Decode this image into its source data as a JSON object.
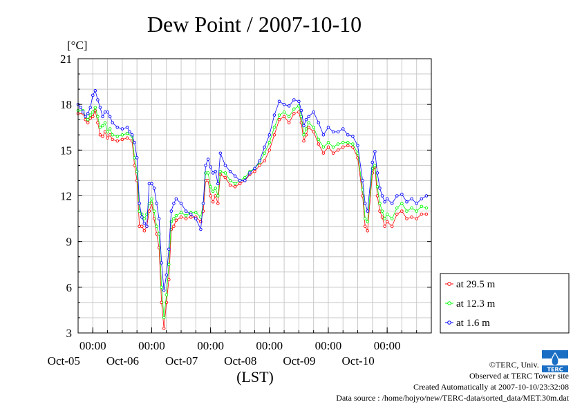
{
  "chart_data": {
    "type": "line",
    "title": "Dew Point / 2007-10-10",
    "ylabel": "[°C]",
    "xlabel": "(LST)",
    "ylim": [
      3,
      21
    ],
    "yticks": [
      3,
      6,
      9,
      12,
      15,
      18,
      21
    ],
    "xlim": [
      0,
      144
    ],
    "x_units": "hours since 2007-10-04 18:00",
    "xticks": [
      {
        "x": 6,
        "top": "00:00",
        "bottom": "Oct-05"
      },
      {
        "x": 30,
        "top": "00:00",
        "bottom": "Oct-06"
      },
      {
        "x": 54,
        "top": "00:00",
        "bottom": "Oct-07"
      },
      {
        "x": 78,
        "top": "00:00",
        "bottom": "Oct-08"
      },
      {
        "x": 102,
        "top": "00:00",
        "bottom": "Oct-09"
      },
      {
        "x": 126,
        "top": "00:00",
        "bottom": "Oct-10"
      }
    ],
    "grid": true,
    "legend_position": "right-bottom",
    "series": [
      {
        "name": "at 29.5 m",
        "color": "#ff0000",
        "points": [
          [
            0,
            17.4
          ],
          [
            2,
            17.4
          ],
          [
            3,
            17.0
          ],
          [
            4,
            16.8
          ],
          [
            5,
            17.1
          ],
          [
            6,
            17.2
          ],
          [
            7,
            17.6
          ],
          [
            8,
            16.8
          ],
          [
            9,
            16.0
          ],
          [
            10,
            15.9
          ],
          [
            11,
            16.2
          ],
          [
            12,
            15.8
          ],
          [
            13,
            16.0
          ],
          [
            14,
            15.7
          ],
          [
            16,
            15.6
          ],
          [
            18,
            15.7
          ],
          [
            20,
            15.8
          ],
          [
            22,
            15.6
          ],
          [
            23,
            14.0
          ],
          [
            24,
            13.0
          ],
          [
            25,
            10.0
          ],
          [
            26,
            10.0
          ],
          [
            27,
            9.7
          ],
          [
            28,
            10.0
          ],
          [
            29,
            11.0
          ],
          [
            30,
            11.5
          ],
          [
            31,
            10.5
          ],
          [
            32,
            9.5
          ],
          [
            33,
            8.6
          ],
          [
            34,
            5.0
          ],
          [
            35,
            3.3
          ],
          [
            36,
            5.0
          ],
          [
            37,
            6.5
          ],
          [
            38,
            9.8
          ],
          [
            39,
            10.0
          ],
          [
            40,
            10.4
          ],
          [
            42,
            10.6
          ],
          [
            44,
            10.5
          ],
          [
            46,
            10.6
          ],
          [
            48,
            10.6
          ],
          [
            50,
            10.3
          ],
          [
            51,
            11.0
          ],
          [
            52,
            13.0
          ],
          [
            53,
            13.0
          ],
          [
            54,
            12.0
          ],
          [
            55,
            11.6
          ],
          [
            56,
            12.0
          ],
          [
            57,
            11.5
          ],
          [
            58,
            13.4
          ],
          [
            60,
            13.2
          ],
          [
            62,
            12.7
          ],
          [
            64,
            12.6
          ],
          [
            66,
            12.8
          ],
          [
            68,
            13.0
          ],
          [
            70,
            13.4
          ],
          [
            72,
            13.6
          ],
          [
            74,
            14.0
          ],
          [
            76,
            14.3
          ],
          [
            78,
            15.0
          ],
          [
            80,
            16.0
          ],
          [
            82,
            17.0
          ],
          [
            84,
            17.2
          ],
          [
            86,
            16.8
          ],
          [
            88,
            17.4
          ],
          [
            90,
            17.5
          ],
          [
            91,
            16.8
          ],
          [
            92,
            15.6
          ],
          [
            93,
            16.0
          ],
          [
            94,
            16.5
          ],
          [
            96,
            16.2
          ],
          [
            98,
            15.4
          ],
          [
            100,
            14.8
          ],
          [
            102,
            15.2
          ],
          [
            104,
            14.8
          ],
          [
            106,
            15.0
          ],
          [
            108,
            15.2
          ],
          [
            110,
            15.3
          ],
          [
            112,
            15.2
          ],
          [
            114,
            14.5
          ],
          [
            116,
            12.0
          ],
          [
            117,
            10.0
          ],
          [
            118,
            9.7
          ],
          [
            120,
            13.5
          ],
          [
            121,
            13.9
          ],
          [
            122,
            12.0
          ],
          [
            123,
            11.0
          ],
          [
            124,
            10.6
          ],
          [
            125,
            10.0
          ],
          [
            126,
            10.3
          ],
          [
            128,
            10.0
          ],
          [
            130,
            10.8
          ],
          [
            132,
            11.0
          ],
          [
            134,
            10.5
          ],
          [
            136,
            10.6
          ],
          [
            138,
            10.5
          ],
          [
            140,
            10.8
          ],
          [
            142,
            10.8
          ]
        ]
      },
      {
        "name": "at 12.3 m",
        "color": "#00ff00",
        "points": [
          [
            0,
            17.6
          ],
          [
            2,
            17.6
          ],
          [
            3,
            17.2
          ],
          [
            4,
            17.0
          ],
          [
            5,
            17.3
          ],
          [
            6,
            17.5
          ],
          [
            7,
            17.8
          ],
          [
            8,
            17.2
          ],
          [
            9,
            16.5
          ],
          [
            10,
            16.6
          ],
          [
            11,
            16.8
          ],
          [
            12,
            16.2
          ],
          [
            13,
            16.4
          ],
          [
            14,
            16.0
          ],
          [
            16,
            15.9
          ],
          [
            18,
            16.0
          ],
          [
            20,
            16.1
          ],
          [
            22,
            15.9
          ],
          [
            23,
            14.5
          ],
          [
            24,
            13.6
          ],
          [
            25,
            11.0
          ],
          [
            26,
            10.8
          ],
          [
            27,
            10.5
          ],
          [
            28,
            10.8
          ],
          [
            29,
            11.5
          ],
          [
            30,
            11.8
          ],
          [
            31,
            11.0
          ],
          [
            32,
            10.0
          ],
          [
            33,
            9.5
          ],
          [
            34,
            6.0
          ],
          [
            35,
            4.0
          ],
          [
            36,
            5.5
          ],
          [
            37,
            7.5
          ],
          [
            38,
            10.3
          ],
          [
            39,
            10.5
          ],
          [
            40,
            10.7
          ],
          [
            42,
            10.9
          ],
          [
            44,
            10.7
          ],
          [
            46,
            10.9
          ],
          [
            48,
            10.9
          ],
          [
            50,
            10.6
          ],
          [
            51,
            11.5
          ],
          [
            52,
            13.5
          ],
          [
            53,
            13.5
          ],
          [
            54,
            12.6
          ],
          [
            55,
            12.3
          ],
          [
            56,
            12.5
          ],
          [
            57,
            12.0
          ],
          [
            58,
            13.6
          ],
          [
            60,
            13.5
          ],
          [
            62,
            13.0
          ],
          [
            64,
            12.8
          ],
          [
            66,
            13.0
          ],
          [
            68,
            13.2
          ],
          [
            70,
            13.6
          ],
          [
            72,
            13.8
          ],
          [
            74,
            14.2
          ],
          [
            76,
            14.8
          ],
          [
            78,
            15.5
          ],
          [
            80,
            16.5
          ],
          [
            82,
            17.3
          ],
          [
            84,
            17.5
          ],
          [
            86,
            17.2
          ],
          [
            88,
            17.7
          ],
          [
            90,
            17.9
          ],
          [
            91,
            17.2
          ],
          [
            92,
            16.0
          ],
          [
            93,
            16.4
          ],
          [
            94,
            16.8
          ],
          [
            96,
            16.5
          ],
          [
            98,
            15.7
          ],
          [
            100,
            15.2
          ],
          [
            102,
            15.5
          ],
          [
            104,
            15.2
          ],
          [
            106,
            15.4
          ],
          [
            108,
            15.5
          ],
          [
            110,
            15.5
          ],
          [
            112,
            15.4
          ],
          [
            114,
            14.8
          ],
          [
            116,
            12.4
          ],
          [
            117,
            10.5
          ],
          [
            118,
            10.3
          ],
          [
            120,
            13.8
          ],
          [
            121,
            14.0
          ],
          [
            122,
            12.6
          ],
          [
            123,
            11.5
          ],
          [
            124,
            11.0
          ],
          [
            125,
            10.5
          ],
          [
            126,
            10.8
          ],
          [
            128,
            10.5
          ],
          [
            130,
            11.2
          ],
          [
            132,
            11.5
          ],
          [
            134,
            11.0
          ],
          [
            136,
            11.2
          ],
          [
            138,
            11.0
          ],
          [
            140,
            11.3
          ],
          [
            142,
            11.2
          ]
        ]
      },
      {
        "name": "at 1.6 m",
        "color": "#0000ff",
        "points": [
          [
            0,
            18.0
          ],
          [
            1,
            17.8
          ],
          [
            2,
            17.5
          ],
          [
            3,
            17.2
          ],
          [
            4,
            17.4
          ],
          [
            5,
            17.8
          ],
          [
            6,
            18.6
          ],
          [
            7,
            18.9
          ],
          [
            8,
            18.3
          ],
          [
            9,
            17.8
          ],
          [
            10,
            17.2
          ],
          [
            11,
            17.5
          ],
          [
            12,
            17.5
          ],
          [
            13,
            17.2
          ],
          [
            14,
            16.8
          ],
          [
            16,
            16.5
          ],
          [
            18,
            16.4
          ],
          [
            20,
            16.5
          ],
          [
            21,
            16.2
          ],
          [
            22,
            16.0
          ],
          [
            23,
            15.5
          ],
          [
            24,
            14.5
          ],
          [
            25,
            11.5
          ],
          [
            26,
            10.6
          ],
          [
            27,
            10.2
          ],
          [
            28,
            10.0
          ],
          [
            29,
            12.8
          ],
          [
            30,
            12.8
          ],
          [
            31,
            12.5
          ],
          [
            32,
            11.5
          ],
          [
            33,
            10.5
          ],
          [
            34,
            7.6
          ],
          [
            35,
            5.8
          ],
          [
            36,
            6.8
          ],
          [
            37,
            8.5
          ],
          [
            38,
            11.0
          ],
          [
            39,
            11.5
          ],
          [
            40,
            11.8
          ],
          [
            42,
            11.5
          ],
          [
            44,
            11.0
          ],
          [
            46,
            10.8
          ],
          [
            48,
            10.5
          ],
          [
            50,
            9.8
          ],
          [
            51,
            11.5
          ],
          [
            52,
            14.0
          ],
          [
            53,
            14.4
          ],
          [
            54,
            13.9
          ],
          [
            55,
            13.5
          ],
          [
            56,
            13.6
          ],
          [
            57,
            12.8
          ],
          [
            58,
            14.8
          ],
          [
            60,
            14.0
          ],
          [
            62,
            13.6
          ],
          [
            64,
            13.3
          ],
          [
            66,
            13.0
          ],
          [
            68,
            13.0
          ],
          [
            70,
            13.5
          ],
          [
            72,
            13.8
          ],
          [
            74,
            14.3
          ],
          [
            76,
            15.2
          ],
          [
            78,
            16.0
          ],
          [
            80,
            17.3
          ],
          [
            82,
            18.2
          ],
          [
            84,
            18.0
          ],
          [
            86,
            17.9
          ],
          [
            88,
            18.3
          ],
          [
            90,
            18.2
          ],
          [
            91,
            17.6
          ],
          [
            92,
            16.6
          ],
          [
            93,
            17.0
          ],
          [
            94,
            17.2
          ],
          [
            96,
            17.5
          ],
          [
            98,
            16.8
          ],
          [
            100,
            16.0
          ],
          [
            102,
            16.5
          ],
          [
            104,
            16.2
          ],
          [
            106,
            16.2
          ],
          [
            108,
            16.4
          ],
          [
            110,
            16.0
          ],
          [
            112,
            15.9
          ],
          [
            114,
            15.3
          ],
          [
            116,
            13.0
          ],
          [
            117,
            11.5
          ],
          [
            118,
            11.0
          ],
          [
            120,
            14.2
          ],
          [
            121,
            14.9
          ],
          [
            122,
            13.5
          ],
          [
            123,
            12.5
          ],
          [
            124,
            12.0
          ],
          [
            125,
            11.6
          ],
          [
            126,
            11.8
          ],
          [
            128,
            11.5
          ],
          [
            130,
            12.0
          ],
          [
            132,
            12.1
          ],
          [
            134,
            11.6
          ],
          [
            136,
            11.8
          ],
          [
            138,
            11.5
          ],
          [
            140,
            11.8
          ],
          [
            142,
            12.0
          ]
        ]
      }
    ]
  },
  "credits": {
    "copyright": "©TERC, Univ. Tsukuba",
    "observed": "Observed at TERC Tower site",
    "created": "Created Automatically at 2007-10-10/23:32:08",
    "source": "Data source : /home/hojyo/new/TERC-data/sorted_data/MET.30m.dat",
    "logo_text": "TERC"
  }
}
